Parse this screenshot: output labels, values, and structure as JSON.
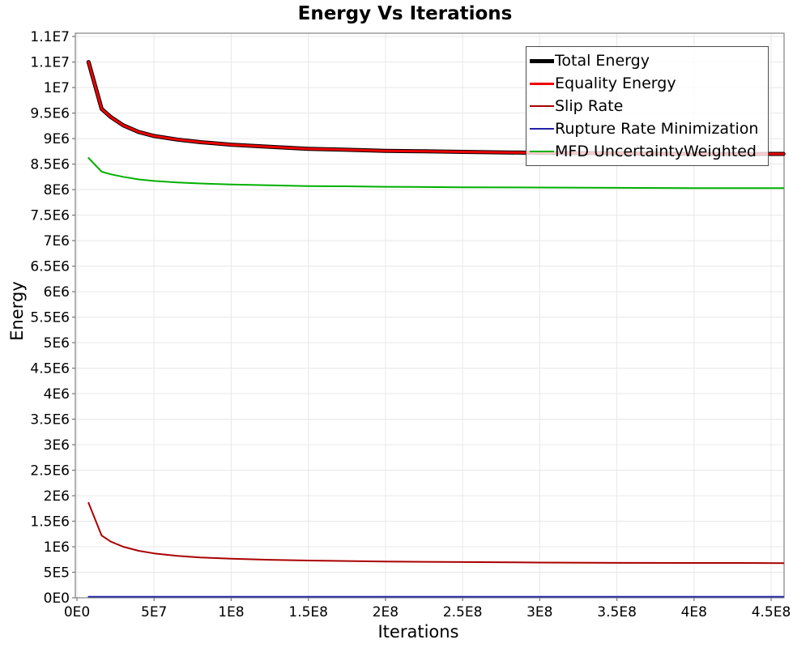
{
  "chart_data": {
    "type": "line",
    "title": "Energy Vs Iterations",
    "xlabel": "Iterations",
    "ylabel": "Energy",
    "xlim": [
      -1050000,
      458400000
    ],
    "ylim": [
      0,
      11065000
    ],
    "grid": true,
    "legend_position": "top-right",
    "colors": {
      "grid": "#e8e8e8",
      "border": "#8c8c8c",
      "tick": "#777777"
    },
    "xticks": {
      "values": [
        0,
        50000000,
        100000000,
        150000000,
        200000000,
        250000000,
        300000000,
        350000000,
        400000000,
        450000000
      ],
      "labels": [
        "0E0",
        "5E7",
        "1E8",
        "1.5E8",
        "2E8",
        "2.5E8",
        "3E8",
        "3.5E8",
        "4E8",
        "4.5E8"
      ]
    },
    "yticks": {
      "values": [
        0,
        500000,
        1000000,
        1500000,
        2000000,
        2500000,
        3000000,
        3500000,
        4000000,
        4500000,
        5000000,
        5500000,
        6000000,
        6500000,
        7000000,
        7500000,
        8000000,
        8500000,
        9000000,
        9500000,
        10000000,
        10500000,
        11000000
      ],
      "labels": [
        "0E0",
        "5E5",
        "1E6",
        "1.5E6",
        "2E6",
        "2.5E6",
        "3E6",
        "3.5E6",
        "4E6",
        "4.5E6",
        "5E6",
        "5.5E6",
        "6E6",
        "6.5E6",
        "7E6",
        "7.5E6",
        "8E6",
        "8.5E6",
        "9E6",
        "9.5E6",
        "1E7",
        "1.1E7",
        "1.1E7"
      ]
    },
    "x": [
      7500000,
      16000000,
      22000000,
      30000000,
      40000000,
      50000000,
      65000000,
      80000000,
      100000000,
      125000000,
      150000000,
      175000000,
      200000000,
      225000000,
      250000000,
      300000000,
      350000000,
      400000000,
      430000000,
      458000000
    ],
    "series": [
      {
        "name": "Total Energy",
        "color": "#000000",
        "width": 5,
        "values": [
          10500000,
          9580000,
          9420000,
          9260000,
          9130000,
          9050000,
          8980000,
          8930000,
          8880000,
          8840000,
          8800000,
          8780000,
          8760000,
          8750000,
          8740000,
          8720000,
          8710000,
          8700000,
          8700000,
          8700000
        ]
      },
      {
        "name": "Equality Energy",
        "color": "#ee0000",
        "width": 3,
        "values": [
          10500000,
          9580000,
          9420000,
          9260000,
          9130000,
          9050000,
          8980000,
          8930000,
          8880000,
          8840000,
          8800000,
          8780000,
          8760000,
          8750000,
          8740000,
          8720000,
          8710000,
          8700000,
          8700000,
          8700000
        ]
      },
      {
        "name": "Slip Rate",
        "color": "#aa0000",
        "width": 2,
        "values": [
          1860000,
          1220000,
          1100000,
          1000000,
          920000,
          870000,
          820000,
          790000,
          765000,
          745000,
          730000,
          720000,
          710000,
          705000,
          700000,
          690000,
          685000,
          683000,
          682000,
          680000
        ]
      },
      {
        "name": "Rupture Rate Minimization",
        "color": "#2222aa",
        "width": 1.8,
        "values": [
          20000,
          20000,
          20000,
          20000,
          20000,
          20000,
          20000,
          20000,
          20000,
          20000,
          20000,
          20000,
          20000,
          20000,
          20000,
          20000,
          20000,
          20000,
          20000,
          20000
        ]
      },
      {
        "name": "MFD UncertaintyWeighted",
        "color": "#00b000",
        "width": 2,
        "values": [
          8620000,
          8350000,
          8300000,
          8250000,
          8200000,
          8170000,
          8140000,
          8120000,
          8100000,
          8085000,
          8070000,
          8065000,
          8055000,
          8050000,
          8045000,
          8040000,
          8035000,
          8030000,
          8030000,
          8030000
        ]
      }
    ]
  }
}
